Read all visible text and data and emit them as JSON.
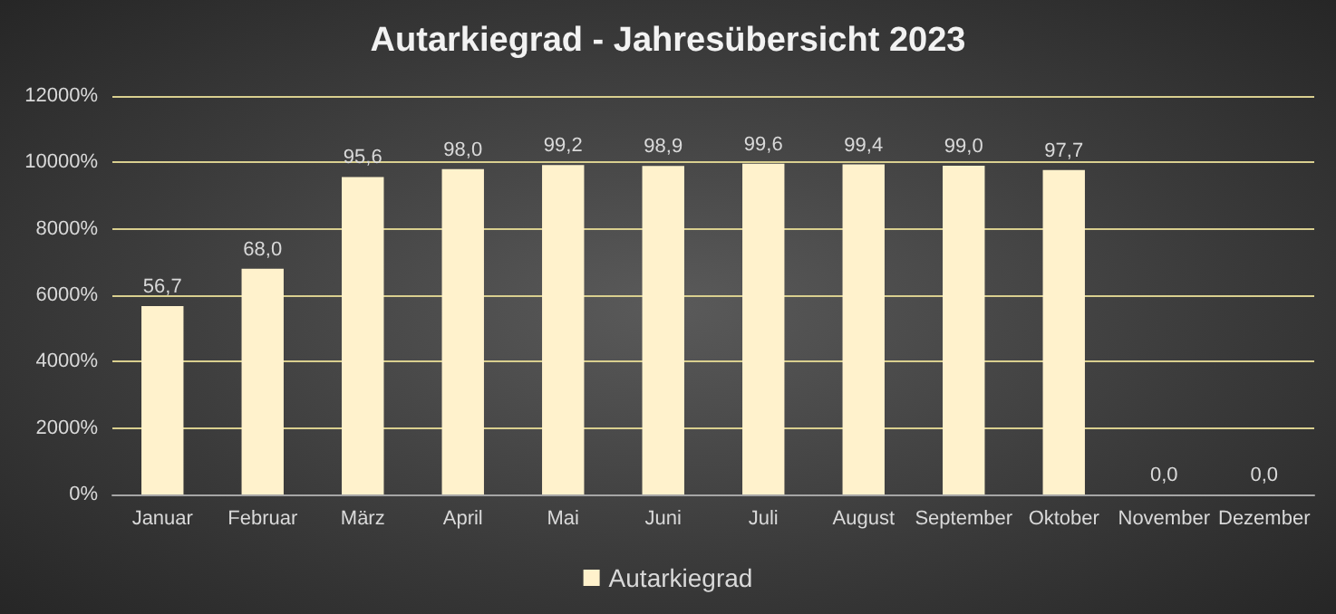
{
  "chart_data": {
    "type": "bar",
    "title": "Autarkiegrad - Jahresübersicht 2023",
    "categories": [
      "Januar",
      "Februar",
      "März",
      "April",
      "Mai",
      "Juni",
      "Juli",
      "August",
      "September",
      "Oktober",
      "November",
      "Dezember"
    ],
    "series": [
      {
        "name": "Autarkiegrad",
        "color": "#fff2cc",
        "values": [
          56.7,
          68.0,
          95.6,
          98.0,
          99.2,
          98.9,
          99.6,
          99.4,
          99.0,
          97.7,
          0,
          0
        ],
        "value_labels": [
          "56,7",
          "68,0",
          "95,6",
          "98,0",
          "99,2",
          "98,9",
          "99,6",
          "99,4",
          "99,0",
          "97,7",
          "0,0",
          "0,0"
        ]
      }
    ],
    "ylim": [
      0,
      120
    ],
    "yticks": [
      {
        "value": 0,
        "label": "0%"
      },
      {
        "value": 20,
        "label": "2000%"
      },
      {
        "value": 40,
        "label": "4000%"
      },
      {
        "value": 60,
        "label": "6000%"
      },
      {
        "value": 80,
        "label": "8000%"
      },
      {
        "value": 100,
        "label": "10000%"
      },
      {
        "value": 120,
        "label": "12000%"
      }
    ],
    "grid": "y",
    "legend": "bottom"
  }
}
